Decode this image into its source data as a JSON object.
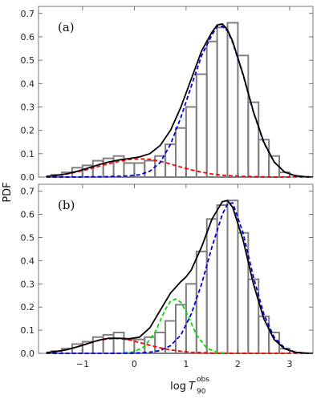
{
  "figure": {
    "ylabel": "PDF",
    "xlabel_main": "log",
    "xlabel_var": "T",
    "xlabel_sub": "90",
    "xlabel_sup": "obs"
  },
  "colors": {
    "bars": "#808080",
    "total": "#000000",
    "red_component": "#ff0000",
    "blue_component": "#0000dd",
    "green_component": "#00dd00"
  },
  "chart_data": [
    {
      "type": "bar",
      "panel_label": "(a)",
      "xlim": [
        -1.85,
        3.45
      ],
      "ylim": [
        0,
        0.73
      ],
      "xticks": [
        -1,
        0,
        1,
        2,
        3
      ],
      "xtick_labels": [
        "−1",
        "0",
        "1",
        "2",
        "3"
      ],
      "yticks": [
        0.0,
        0.1,
        0.2,
        0.3,
        0.4,
        0.5,
        0.6,
        0.7
      ],
      "ytick_labels": [
        "0.0",
        "0.1",
        "0.2",
        "0.3",
        "0.4",
        "0.5",
        "0.6",
        "0.7"
      ],
      "histogram": {
        "bin_edges": [
          -1.6,
          -1.4,
          -1.2,
          -1.0,
          -0.8,
          -0.6,
          -0.4,
          -0.2,
          0.0,
          0.2,
          0.4,
          0.6,
          0.8,
          1.0,
          1.2,
          1.4,
          1.6,
          1.8,
          2.0,
          2.2,
          2.4,
          2.6,
          2.8,
          3.0
        ],
        "values": [
          0.01,
          0.02,
          0.04,
          0.05,
          0.07,
          0.08,
          0.09,
          0.06,
          0.06,
          0.07,
          0.09,
          0.14,
          0.21,
          0.3,
          0.44,
          0.58,
          0.64,
          0.66,
          0.52,
          0.32,
          0.16,
          0.09,
          0.02
        ]
      },
      "curves": [
        {
          "role": "total",
          "style": "solid",
          "x": [
            -1.7,
            -1.5,
            -1.3,
            -1.1,
            -0.9,
            -0.7,
            -0.5,
            -0.3,
            -0.1,
            0.1,
            0.3,
            0.5,
            0.7,
            0.9,
            1.1,
            1.3,
            1.5,
            1.6,
            1.7,
            1.8,
            1.9,
            2.1,
            2.3,
            2.5,
            2.7,
            2.9,
            3.1,
            3.3,
            3.45
          ],
          "y": [
            0.003,
            0.007,
            0.014,
            0.025,
            0.038,
            0.052,
            0.064,
            0.073,
            0.079,
            0.086,
            0.1,
            0.135,
            0.2,
            0.3,
            0.42,
            0.54,
            0.62,
            0.65,
            0.655,
            0.63,
            0.58,
            0.44,
            0.28,
            0.15,
            0.065,
            0.022,
            0.006,
            0.0015,
            0.0005
          ]
        },
        {
          "role": "component",
          "color": "red",
          "style": "dashed",
          "x": [
            -1.7,
            -1.5,
            -1.3,
            -1.1,
            -0.9,
            -0.7,
            -0.5,
            -0.3,
            -0.1,
            0.1,
            0.3,
            0.5,
            0.7,
            0.9,
            1.1,
            1.3,
            1.5,
            1.7,
            1.9,
            2.1,
            2.3,
            2.5,
            2.7,
            2.9,
            3.1,
            3.3,
            3.45
          ],
          "y": [
            0.003,
            0.007,
            0.013,
            0.022,
            0.033,
            0.045,
            0.057,
            0.067,
            0.075,
            0.078,
            0.076,
            0.068,
            0.056,
            0.043,
            0.031,
            0.021,
            0.013,
            0.008,
            0.005,
            0.003,
            0.002,
            0.001,
            0.0005,
            0.0003,
            0.0002,
            0.0001,
            0.0001
          ]
        },
        {
          "role": "component",
          "color": "blue",
          "style": "dashed",
          "x": [
            -1.7,
            -1.3,
            -0.9,
            -0.5,
            -0.1,
            0.1,
            0.3,
            0.5,
            0.7,
            0.9,
            1.1,
            1.3,
            1.5,
            1.6,
            1.7,
            1.8,
            1.9,
            2.1,
            2.3,
            2.5,
            2.7,
            2.9,
            3.1,
            3.3,
            3.45
          ],
          "y": [
            0.0,
            0.0,
            0.001,
            0.002,
            0.005,
            0.01,
            0.025,
            0.062,
            0.14,
            0.256,
            0.389,
            0.52,
            0.608,
            0.645,
            0.645,
            0.625,
            0.575,
            0.437,
            0.278,
            0.147,
            0.064,
            0.022,
            0.006,
            0.0015,
            0.0005
          ]
        }
      ]
    },
    {
      "type": "bar",
      "panel_label": "(b)",
      "xlim": [
        -1.85,
        3.45
      ],
      "ylim": [
        0,
        0.73
      ],
      "xticks": [
        -1,
        0,
        1,
        2,
        3
      ],
      "xtick_labels": [
        "−1",
        "0",
        "1",
        "2",
        "3"
      ],
      "yticks": [
        0.0,
        0.1,
        0.2,
        0.3,
        0.4,
        0.5,
        0.6,
        0.7
      ],
      "ytick_labels": [
        "0.0",
        "0.1",
        "0.2",
        "0.3",
        "0.4",
        "0.5",
        "0.6",
        "0.7"
      ],
      "histogram": {
        "bin_edges": [
          -1.6,
          -1.4,
          -1.2,
          -1.0,
          -0.8,
          -0.6,
          -0.4,
          -0.2,
          0.0,
          0.2,
          0.4,
          0.6,
          0.8,
          1.0,
          1.2,
          1.4,
          1.6,
          1.8,
          2.0,
          2.2,
          2.4,
          2.6,
          2.8,
          3.0
        ],
        "values": [
          0.01,
          0.02,
          0.04,
          0.05,
          0.07,
          0.08,
          0.09,
          0.06,
          0.06,
          0.07,
          0.09,
          0.14,
          0.21,
          0.3,
          0.44,
          0.58,
          0.64,
          0.66,
          0.52,
          0.32,
          0.16,
          0.09,
          0.02
        ]
      },
      "curves": [
        {
          "role": "total",
          "style": "solid",
          "x": [
            -1.7,
            -1.5,
            -1.3,
            -1.1,
            -0.9,
            -0.7,
            -0.5,
            -0.3,
            -0.1,
            0.1,
            0.3,
            0.5,
            0.7,
            0.9,
            1.0,
            1.1,
            1.3,
            1.5,
            1.7,
            1.8,
            1.9,
            2.1,
            2.3,
            2.5,
            2.7,
            2.9,
            3.1,
            3.3,
            3.45
          ],
          "y": [
            0.003,
            0.008,
            0.016,
            0.028,
            0.042,
            0.056,
            0.065,
            0.065,
            0.063,
            0.07,
            0.11,
            0.185,
            0.26,
            0.31,
            0.33,
            0.36,
            0.46,
            0.58,
            0.655,
            0.66,
            0.63,
            0.49,
            0.3,
            0.15,
            0.06,
            0.02,
            0.005,
            0.001,
            0.0003
          ]
        },
        {
          "role": "component",
          "color": "red",
          "style": "dashed",
          "x": [
            -1.7,
            -1.5,
            -1.3,
            -1.1,
            -0.9,
            -0.7,
            -0.5,
            -0.3,
            -0.1,
            0.1,
            0.3,
            0.5,
            0.7,
            0.9,
            1.1,
            1.3,
            1.5,
            1.7,
            2.0,
            2.5,
            3.0,
            3.45
          ],
          "y": [
            0.003,
            0.008,
            0.016,
            0.028,
            0.042,
            0.055,
            0.063,
            0.064,
            0.058,
            0.047,
            0.035,
            0.024,
            0.015,
            0.009,
            0.005,
            0.003,
            0.0015,
            0.0007,
            0.0002,
            0.0,
            0.0,
            0.0
          ]
        },
        {
          "role": "component",
          "color": "green",
          "style": "dashed",
          "x": [
            -0.2,
            0.0,
            0.2,
            0.4,
            0.5,
            0.6,
            0.7,
            0.8,
            0.9,
            1.0,
            1.1,
            1.2,
            1.4,
            1.6,
            1.8
          ],
          "y": [
            0.001,
            0.007,
            0.03,
            0.09,
            0.14,
            0.19,
            0.225,
            0.235,
            0.22,
            0.18,
            0.13,
            0.08,
            0.022,
            0.004,
            0.0005
          ]
        },
        {
          "role": "component",
          "color": "blue",
          "style": "dashed",
          "x": [
            -1.7,
            -1.0,
            -0.5,
            0.0,
            0.3,
            0.5,
            0.7,
            0.9,
            1.1,
            1.3,
            1.5,
            1.7,
            1.8,
            1.9,
            2.1,
            2.3,
            2.5,
            2.7,
            2.9,
            3.1,
            3.3,
            3.45
          ],
          "y": [
            0.0,
            0.0,
            0.0,
            0.001,
            0.005,
            0.012,
            0.033,
            0.08,
            0.17,
            0.3,
            0.46,
            0.6,
            0.645,
            0.65,
            0.52,
            0.33,
            0.17,
            0.07,
            0.024,
            0.006,
            0.0012,
            0.0003
          ]
        }
      ]
    }
  ]
}
